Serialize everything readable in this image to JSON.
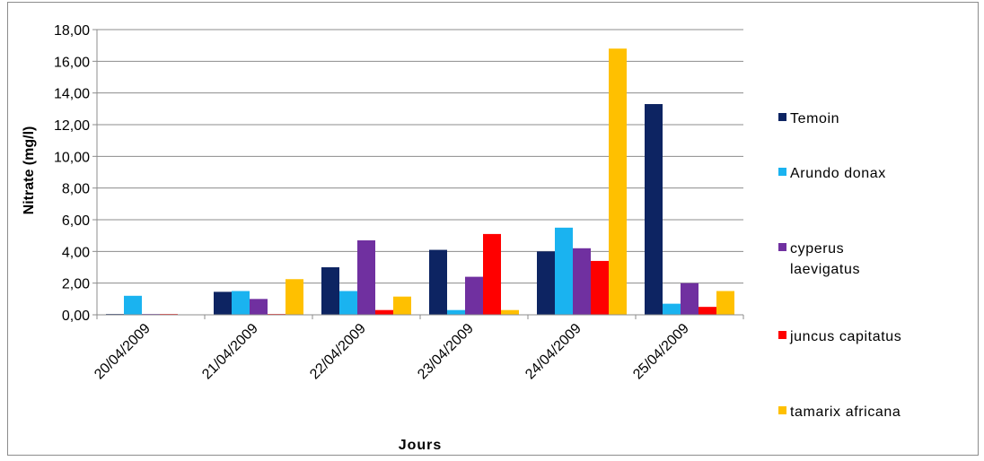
{
  "chart_data": {
    "type": "bar",
    "categories": [
      "20/04/2009",
      "21/04/2009",
      "22/04/2009",
      "23/04/2009",
      "24/04/2009",
      "25/04/2009"
    ],
    "series": [
      {
        "name": "Temoin",
        "color": "#0d2462",
        "values": [
          0.05,
          1.45,
          3.0,
          4.1,
          4.0,
          13.3
        ]
      },
      {
        "name": "Arundo donax",
        "color": "#1ab3f0",
        "values": [
          1.2,
          1.5,
          1.5,
          0.3,
          5.5,
          0.7
        ]
      },
      {
        "name": "cyperus laevigatus",
        "color": "#7030a0",
        "values": [
          0.05,
          1.0,
          4.7,
          2.4,
          4.2,
          2.0
        ]
      },
      {
        "name": "juncus capitatus",
        "color": "#ff0000",
        "values": [
          0.05,
          0.05,
          0.3,
          5.1,
          3.4,
          0.5
        ]
      },
      {
        "name": "tamarix africana",
        "color": "#ffc000",
        "values": [
          0.0,
          2.25,
          1.15,
          0.3,
          16.8,
          1.5
        ]
      }
    ],
    "xlabel": "Jours",
    "ylabel": "Nitrate (mg/l)",
    "ylim": [
      0,
      18
    ],
    "yticks": [
      "0,00",
      "2,00",
      "4,00",
      "6,00",
      "8,00",
      "10,00",
      "12,00",
      "14,00",
      "16,00",
      "18,00"
    ],
    "grid": true,
    "legend_position": "right"
  }
}
